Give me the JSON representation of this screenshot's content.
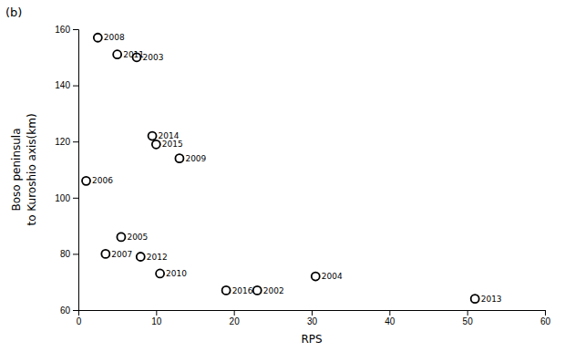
{
  "chart_data": {
    "type": "scatter",
    "title": "(b)",
    "xlabel": "RPS",
    "ylabel": [
      "Boso peninsula",
      "to Kuroshio axis(km)"
    ],
    "x": [
      2.5,
      7.5,
      5.0,
      1.0,
      9.5,
      10.0,
      13.0,
      5.5,
      3.5,
      8.0,
      10.5,
      19.0,
      23.0,
      30.5,
      51.0
    ],
    "values": [
      157,
      150,
      151,
      106,
      122,
      119,
      114,
      86,
      80,
      79,
      73,
      67,
      67,
      72,
      64
    ],
    "annotations": [
      "2008",
      "2003",
      "2011",
      "2006",
      "2014",
      "2015",
      "2009",
      "2005",
      "2007",
      "2012",
      "2010",
      "2016",
      "2002",
      "2004",
      "2013"
    ],
    "xlim": [
      0,
      60
    ],
    "ylim": [
      60,
      160
    ],
    "xticks": [
      0,
      10,
      20,
      30,
      40,
      50,
      60
    ],
    "yticks": [
      60,
      80,
      100,
      120,
      140,
      160
    ],
    "color": "white",
    "marker": "circle",
    "grid": false
  }
}
